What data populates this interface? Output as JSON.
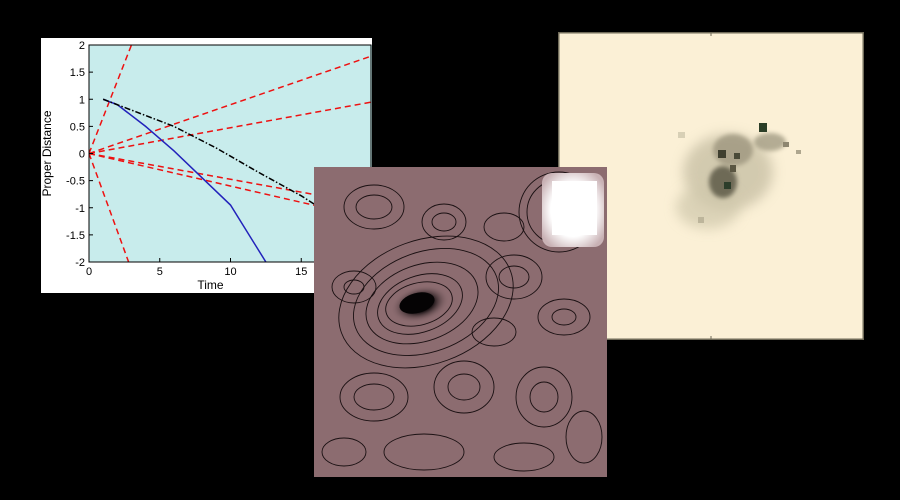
{
  "chart_data": {
    "type": "line",
    "xlabel": "Time",
    "ylabel": "Proper Distance",
    "xlim": [
      0,
      20
    ],
    "ylim": [
      -2,
      2
    ],
    "xticks": [
      "0",
      "5",
      "10",
      "15"
    ],
    "yticks": [
      "2",
      "1.5",
      "1",
      "0.5",
      "0",
      "-0.5",
      "-1",
      "-1.5",
      "-2"
    ],
    "background": "#c8ecec",
    "series": [
      {
        "style": "solid",
        "color": "#2222bb",
        "points": [
          [
            1,
            1
          ],
          [
            2,
            0.9
          ],
          [
            4,
            0.5
          ],
          [
            6,
            0.05
          ],
          [
            8,
            -0.45
          ],
          [
            10,
            -0.95
          ],
          [
            12.5,
            -2
          ]
        ]
      },
      {
        "style": "dash-dot",
        "color": "#000000",
        "points": [
          [
            1,
            1
          ],
          [
            3,
            0.8
          ],
          [
            6,
            0.5
          ],
          [
            9,
            0.1
          ],
          [
            12,
            -0.35
          ],
          [
            15,
            -0.78
          ],
          [
            17.5,
            -1.2
          ]
        ]
      }
    ],
    "rays": {
      "color": "#ee1111",
      "style": "dashed",
      "origin": [
        0,
        0
      ],
      "endpoints": [
        [
          3,
          2
        ],
        [
          20,
          1.8
        ],
        [
          20,
          0.95
        ],
        [
          2.8,
          -2
        ],
        [
          20,
          -1.2
        ],
        [
          20,
          -0.95
        ]
      ]
    }
  },
  "colors": {
    "page_background": "#000000",
    "contour_fill": "#8c6c70",
    "hubble_background": "#fbf0d6"
  }
}
